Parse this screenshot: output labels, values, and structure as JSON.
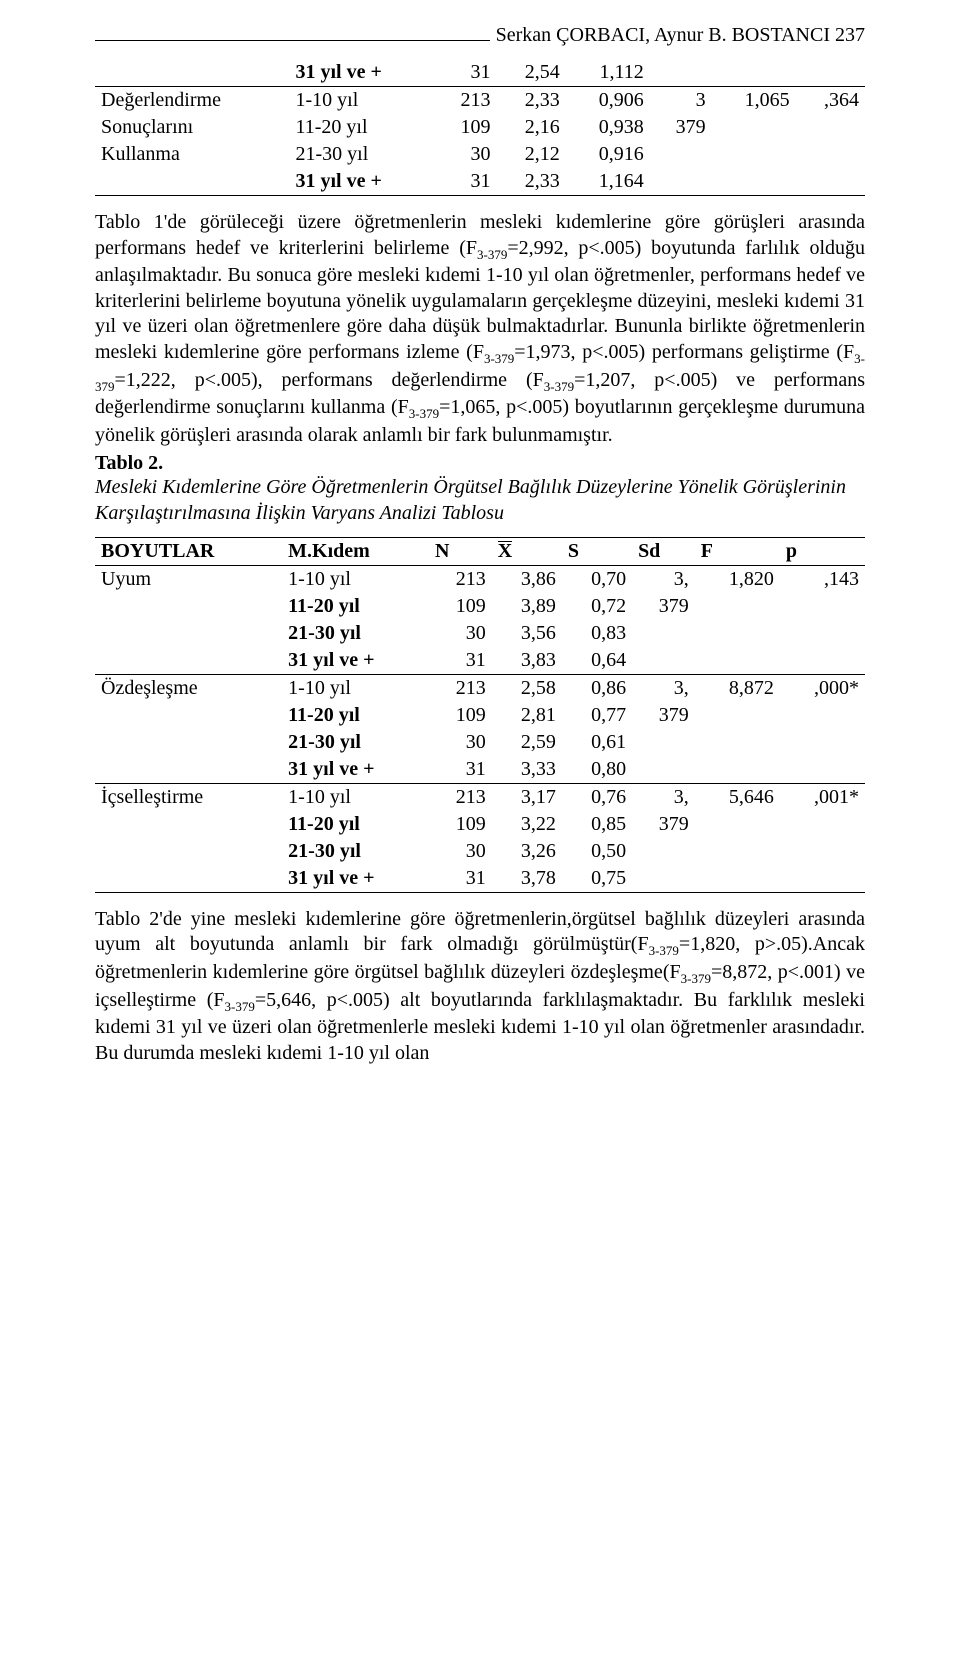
{
  "page": {
    "header": "Serkan ÇORBACI, Aynur B. BOSTANCI 237"
  },
  "table1": {
    "row_labels": [
      "Değerlendirme",
      "Sonuçlarını",
      "Kullanma",
      ""
    ],
    "rows": [
      {
        "kidem": "31 yıl ve +",
        "n": "31",
        "x": "2,54",
        "s": "1,112",
        "sd": "",
        "f": "",
        "p": "",
        "bold": true
      },
      {
        "kidem": "1-10 yıl",
        "n": "213",
        "x": "2,33",
        "s": "0,906",
        "sd": "3",
        "f": "1,065",
        "p": ",364"
      },
      {
        "kidem": "11-20 yıl",
        "n": "109",
        "x": "2,16",
        "s": "0,938",
        "sd": "379",
        "f": "",
        "p": ""
      },
      {
        "kidem": "21-30 yıl",
        "n": "30",
        "x": "2,12",
        "s": "0,916",
        "sd": "",
        "f": "",
        "p": ""
      },
      {
        "kidem": "31 yıl ve +",
        "n": "31",
        "x": "2,33",
        "s": "1,164",
        "sd": "",
        "f": "",
        "p": "",
        "bold": true
      }
    ]
  },
  "para1a": "Tablo 1'de görüleceği üzere öğretmenlerin mesleki kıdemlerine göre görüşleri arasında performans hedef ve kriterlerini belirleme (F",
  "para1a_sub": "3-379",
  "para1b": "=2,992, p<.005) boyutunda farlılık olduğu anlaşılmaktadır. Bu sonuca göre mesleki kıdemi 1-10 yıl olan öğretmenler,  performans hedef ve kriterlerini belirleme boyutuna  yönelik uygulamaların gerçekleşme düzeyini, mesleki kıdemi 31 yıl ve üzeri olan öğretmenlere göre daha düşük bulmaktadırlar. Bununla birlikte öğretmenlerin mesleki kıdemlerine göre performans izleme  (F",
  "para1b_sub": "3-379",
  "para1c": "=1,973, p<.005) performans geliştirme (F",
  "para1c_sub": "3-379",
  "para1d": "=1,222, p<.005), performans değerlendirme (F",
  "para1d_sub": "3-379",
  "para1e": "=1,207, p<.005) ve performans değerlendirme sonuçlarını kullanma (F",
  "para1e_sub": "3-379",
  "para1f": "=1,065, p<.005) boyutlarının gerçekleşme durumuna yönelik görüşleri arasında olarak anlamlı bir fark bulunmamıştır.",
  "tablo2_label": "Tablo 2.",
  "tablo2_caption": "Mesleki Kıdemlerine Göre Öğretmenlerin Örgütsel Bağlılık Düzeylerine Yönelik Görüşlerinin Karşılaştırılmasına İlişkin Varyans Analizi Tablosu",
  "table2": {
    "headers": [
      "BOYUTLAR",
      "M.Kıdem",
      "N",
      "X",
      "S",
      "Sd",
      "F",
      "p"
    ],
    "groups": [
      {
        "label": "Uyum",
        "rows": [
          {
            "kidem": "1-10 yıl",
            "n": "213",
            "x": "3,86",
            "s": "0,70",
            "sd": "3,",
            "f": "1,820",
            "p": ",143"
          },
          {
            "kidem": "11-20 yıl",
            "n": "109",
            "x": "3,89",
            "s": "0,72",
            "sd": "379",
            "f": "",
            "p": "",
            "bold": true
          },
          {
            "kidem": "21-30 yıl",
            "n": "30",
            "x": "3,56",
            "s": "0,83",
            "sd": "",
            "f": "",
            "p": "",
            "bold": true
          },
          {
            "kidem": "31 yıl ve +",
            "n": "31",
            "x": "3,83",
            "s": "0,64",
            "sd": "",
            "f": "",
            "p": "",
            "bold": true
          }
        ]
      },
      {
        "label": "Özdeşleşme",
        "rows": [
          {
            "kidem": "1-10 yıl",
            "n": "213",
            "x": "2,58",
            "s": "0,86",
            "sd": "3,",
            "f": "8,872",
            "p": ",000*"
          },
          {
            "kidem": "11-20 yıl",
            "n": "109",
            "x": "2,81",
            "s": "0,77",
            "sd": "379",
            "f": "",
            "p": "",
            "bold": true
          },
          {
            "kidem": "21-30 yıl",
            "n": "30",
            "x": "2,59",
            "s": "0,61",
            "sd": "",
            "f": "",
            "p": "",
            "bold": true
          },
          {
            "kidem": "31 yıl ve +",
            "n": "31",
            "x": "3,33",
            "s": "0,80",
            "sd": "",
            "f": "",
            "p": "",
            "bold": true
          }
        ]
      },
      {
        "label": "İçselleştirme",
        "rows": [
          {
            "kidem": "1-10 yıl",
            "n": "213",
            "x": "3,17",
            "s": "0,76",
            "sd": "3,",
            "f": "5,646",
            "p": ",001*"
          },
          {
            "kidem": "11-20 yıl",
            "n": "109",
            "x": "3,22",
            "s": "0,85",
            "sd": "379",
            "f": "",
            "p": "",
            "bold": true
          },
          {
            "kidem": "21-30 yıl",
            "n": "30",
            "x": "3,26",
            "s": "0,50",
            "sd": "",
            "f": "",
            "p": "",
            "bold": true
          },
          {
            "kidem": "31 yıl ve +",
            "n": "31",
            "x": "3,78",
            "s": "0,75",
            "sd": "",
            "f": "",
            "p": "",
            "bold": true
          }
        ]
      }
    ]
  },
  "para2a": "Tablo 2'de yine mesleki kıdemlerine göre öğretmenlerin,örgütsel bağlılık düzeyleri arasında uyum alt boyutunda anlamlı bir fark olmadığı görülmüştür(F",
  "para2a_sub": "3-379",
  "para2b": "=1,820, p>.05).Ancak öğretmenlerin kıdemlerine göre örgütsel bağlılık düzeyleri özdeşleşme(F",
  "para2b_sub": "3-379",
  "para2c": "=8,872, p<.001) ve içselleştirme (F",
  "para2c_sub": "3-379",
  "para2d": "=5,646, p<.005)  alt boyutlarında farklılaşmaktadır. Bu farklılık mesleki kıdemi 31 yıl ve üzeri olan öğretmenlerle mesleki kıdemi 1-10 yıl olan öğretmenler arasındadır. Bu durumda mesleki kıdemi 1-10 yıl olan"
}
